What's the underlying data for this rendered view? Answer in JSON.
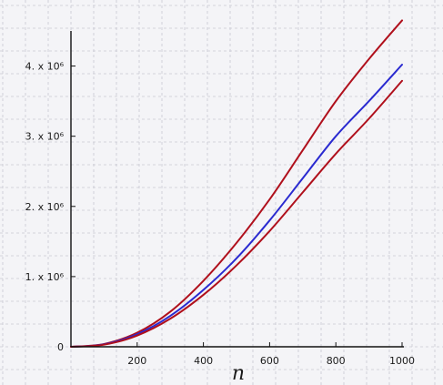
{
  "chart_data": {
    "type": "line",
    "title": "",
    "xlabel": "n",
    "ylabel": "",
    "xlim": [
      0,
      1000
    ],
    "ylim": [
      0,
      4500000
    ],
    "grid": true,
    "x_ticks": [
      {
        "value": 200,
        "label": "200"
      },
      {
        "value": 400,
        "label": "400"
      },
      {
        "value": 600,
        "label": "600"
      },
      {
        "value": 800,
        "label": "800"
      },
      {
        "value": 1000,
        "label": "1000"
      }
    ],
    "y_ticks": [
      {
        "value": 0,
        "label": "0"
      },
      {
        "value": 1000000,
        "label": "1. x 10⁶"
      },
      {
        "value": 2000000,
        "label": "2. x 10⁶"
      },
      {
        "value": 3000000,
        "label": "3. x 10⁶"
      },
      {
        "value": 4000000,
        "label": "4. x 10⁶"
      }
    ],
    "x": [
      0,
      100,
      200,
      300,
      400,
      500,
      600,
      700,
      800,
      900,
      1000
    ],
    "series": [
      {
        "color": "#b0101c",
        "values": [
          0,
          40000,
          200000,
          500000,
          940000,
          1480000,
          2100000,
          2800000,
          3500000,
          4100000,
          4650000
        ]
      },
      {
        "color": "#2a2ad0",
        "values": [
          0,
          35000,
          180000,
          440000,
          810000,
          1260000,
          1800000,
          2400000,
          3000000,
          3500000,
          4020000
        ]
      },
      {
        "color": "#b0101c",
        "values": [
          0,
          30000,
          160000,
          400000,
          740000,
          1160000,
          1650000,
          2200000,
          2750000,
          3250000,
          3790000
        ]
      }
    ],
    "colors": {
      "background": "#f4f4f7",
      "grid": "#c9c9d2",
      "axis": "#111111"
    }
  }
}
